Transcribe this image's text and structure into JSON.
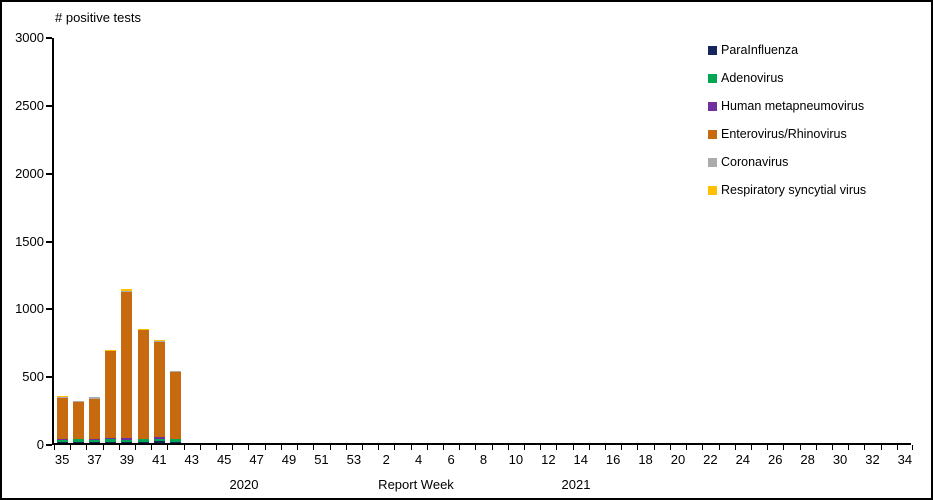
{
  "chart_data": {
    "type": "bar",
    "stacked": true,
    "title": "# positive tests",
    "xlabel": "Report Week",
    "ylabel": "# positive tests",
    "ylim": [
      0,
      3000
    ],
    "yticks": [
      0,
      500,
      1000,
      1500,
      2000,
      2500,
      3000
    ],
    "grid": false,
    "legend_position": "right",
    "year_labels": [
      "2020",
      "2021"
    ],
    "categories": [
      "35",
      "36",
      "37",
      "38",
      "39",
      "40",
      "41",
      "42",
      "43",
      "44",
      "45",
      "46",
      "47",
      "48",
      "49",
      "50",
      "51",
      "52",
      "53",
      "1",
      "2",
      "3",
      "4",
      "5",
      "6",
      "7",
      "8",
      "9",
      "10",
      "11",
      "12",
      "13",
      "14",
      "15",
      "16",
      "17",
      "18",
      "19",
      "20",
      "21",
      "22",
      "23",
      "24",
      "25",
      "26",
      "27",
      "28",
      "29",
      "30",
      "31",
      "32",
      "33",
      "34"
    ],
    "x_tick_labels_visible": [
      "35",
      "37",
      "39",
      "41",
      "43",
      "45",
      "47",
      "49",
      "51",
      "53",
      "2",
      "4",
      "6",
      "8",
      "10",
      "12",
      "14",
      "16",
      "18",
      "20",
      "22",
      "24",
      "26",
      "28",
      "30",
      "32",
      "34"
    ],
    "series": [
      {
        "name": "ParaInfluenza",
        "color": "#16255B",
        "values": [
          8,
          10,
          8,
          8,
          10,
          8,
          12,
          8,
          0,
          0,
          0,
          0,
          0,
          0,
          0,
          0,
          0,
          0,
          0,
          0,
          0,
          0,
          0,
          0,
          0,
          0,
          0,
          0,
          0,
          0,
          0,
          0,
          0,
          0,
          0,
          0,
          0,
          0,
          0,
          0,
          0,
          0,
          0,
          0,
          0,
          0,
          0,
          0,
          0,
          0,
          0,
          0,
          0
        ]
      },
      {
        "name": "Adenovirus",
        "color": "#00A651",
        "values": [
          15,
          20,
          15,
          25,
          10,
          20,
          15,
          20,
          0,
          0,
          0,
          0,
          0,
          0,
          0,
          0,
          0,
          0,
          0,
          0,
          0,
          0,
          0,
          0,
          0,
          0,
          0,
          0,
          0,
          0,
          0,
          0,
          0,
          0,
          0,
          0,
          0,
          0,
          0,
          0,
          0,
          0,
          0,
          0,
          0,
          0,
          0,
          0,
          0,
          0,
          0,
          0,
          0
        ]
      },
      {
        "name": "Human metapneumovirus",
        "color": "#7030A0",
        "values": [
          3,
          3,
          8,
          3,
          15,
          3,
          15,
          3,
          0,
          0,
          0,
          0,
          0,
          0,
          0,
          0,
          0,
          0,
          0,
          0,
          0,
          0,
          0,
          0,
          0,
          0,
          0,
          0,
          0,
          0,
          0,
          0,
          0,
          0,
          0,
          0,
          0,
          0,
          0,
          0,
          0,
          0,
          0,
          0,
          0,
          0,
          0,
          0,
          0,
          0,
          0,
          0,
          0
        ]
      },
      {
        "name": "Enterovirus/Rhinovirus",
        "color": "#C7690F",
        "values": [
          305,
          270,
          295,
          640,
          1080,
          800,
          705,
          495,
          0,
          0,
          0,
          0,
          0,
          0,
          0,
          0,
          0,
          0,
          0,
          0,
          0,
          0,
          0,
          0,
          0,
          0,
          0,
          0,
          0,
          0,
          0,
          0,
          0,
          0,
          0,
          0,
          0,
          0,
          0,
          0,
          0,
          0,
          0,
          0,
          0,
          0,
          0,
          0,
          0,
          0,
          0,
          0,
          0
        ]
      },
      {
        "name": "Coronavirus",
        "color": "#ABABAB",
        "values": [
          10,
          5,
          10,
          5,
          8,
          5,
          8,
          3,
          0,
          0,
          0,
          0,
          0,
          0,
          0,
          0,
          0,
          0,
          0,
          0,
          0,
          0,
          0,
          0,
          0,
          0,
          0,
          0,
          0,
          0,
          0,
          0,
          0,
          0,
          0,
          0,
          0,
          0,
          0,
          0,
          0,
          0,
          0,
          0,
          0,
          0,
          0,
          0,
          0,
          0,
          0,
          0,
          0
        ]
      },
      {
        "name": "Respiratory syncytial virus",
        "color": "#FFC000",
        "values": [
          5,
          3,
          5,
          5,
          15,
          5,
          5,
          3,
          0,
          0,
          0,
          0,
          0,
          0,
          0,
          0,
          0,
          0,
          0,
          0,
          0,
          0,
          0,
          0,
          0,
          0,
          0,
          0,
          0,
          0,
          0,
          0,
          0,
          0,
          0,
          0,
          0,
          0,
          0,
          0,
          0,
          0,
          0,
          0,
          0,
          0,
          0,
          0,
          0,
          0,
          0,
          0,
          0
        ]
      }
    ]
  }
}
